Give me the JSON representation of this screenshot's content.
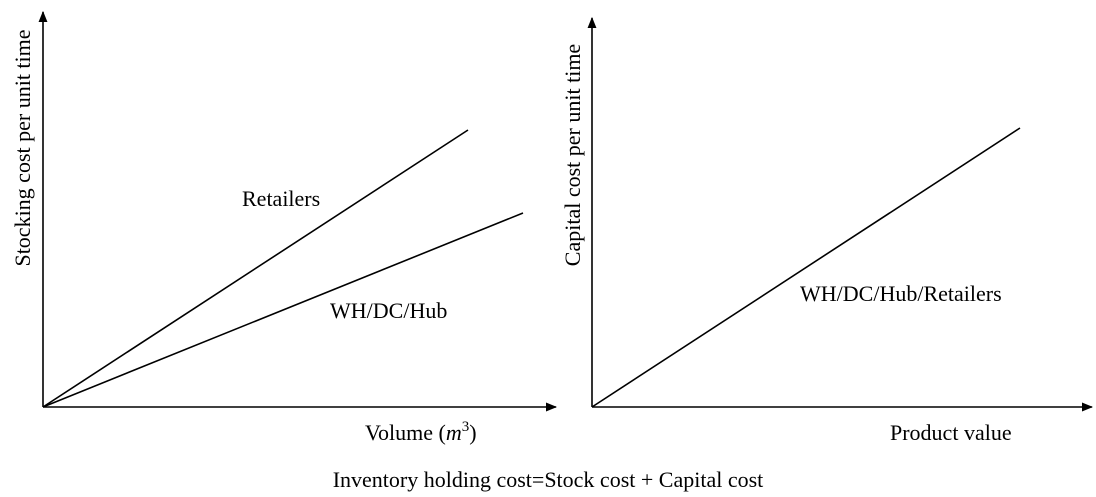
{
  "left_panel": {
    "y_label": "Stocking cost per unit time",
    "x_label_parts": [
      "Volume (",
      "m",
      "3",
      ")"
    ],
    "line_labels": [
      "Retailers",
      "WH/DC/Hub"
    ]
  },
  "right_panel": {
    "y_label": "Capital cost per unit time",
    "x_label": "Product value",
    "line_labels": [
      "WH/DC/Hub/Retailers"
    ]
  },
  "caption": "Inventory holding cost=Stock cost + Capital cost"
}
